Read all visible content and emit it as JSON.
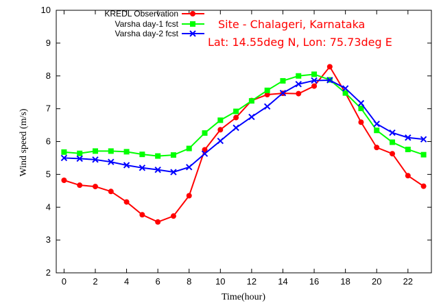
{
  "chart_data": {
    "type": "line",
    "xlabel": "Time(hour)",
    "ylabel": "Wind speed (m/s)",
    "xlim": [
      -0.5,
      23.5
    ],
    "ylim": [
      2,
      10
    ],
    "x_ticks": [
      0,
      2,
      4,
      6,
      8,
      10,
      12,
      14,
      16,
      18,
      20,
      22
    ],
    "y_ticks": [
      2,
      3,
      4,
      5,
      6,
      7,
      8,
      9,
      10
    ],
    "grid": false,
    "legend_position": "top-left",
    "x": [
      0,
      1,
      2,
      3,
      4,
      5,
      6,
      7,
      8,
      9,
      10,
      11,
      12,
      13,
      14,
      15,
      16,
      17,
      18,
      19,
      20,
      21,
      22,
      23
    ],
    "series": [
      {
        "name": "KREDL Observation",
        "color": "#ff0000",
        "marker": "circle",
        "values": [
          4.82,
          4.67,
          4.63,
          4.48,
          4.16,
          3.77,
          3.55,
          3.73,
          4.35,
          5.75,
          6.36,
          6.73,
          7.25,
          7.43,
          7.47,
          7.46,
          7.69,
          8.28,
          7.48,
          6.59,
          5.82,
          5.63,
          4.96,
          4.64
        ]
      },
      {
        "name": "Varsha day-1 fcst",
        "color": "#00ff00",
        "marker": "square",
        "values": [
          5.68,
          5.64,
          5.71,
          5.71,
          5.69,
          5.61,
          5.56,
          5.59,
          5.79,
          6.26,
          6.65,
          6.92,
          7.24,
          7.56,
          7.85,
          8.0,
          8.05,
          7.88,
          7.48,
          7.01,
          6.34,
          5.98,
          5.76,
          5.6
        ]
      },
      {
        "name": "Varsha day-2 fcst",
        "color": "#0000ff",
        "marker": "x",
        "values": [
          5.5,
          5.48,
          5.45,
          5.38,
          5.28,
          5.2,
          5.14,
          5.07,
          5.22,
          5.63,
          6.02,
          6.42,
          6.75,
          7.07,
          7.48,
          7.75,
          7.86,
          7.87,
          7.62,
          7.17,
          6.54,
          6.27,
          6.12,
          6.07
        ]
      }
    ],
    "annotations": [
      "Site - Chalageri, Karnataka",
      "Lat: 14.55deg N, Lon: 75.73deg E"
    ],
    "annotation_color": "#ff0000"
  }
}
